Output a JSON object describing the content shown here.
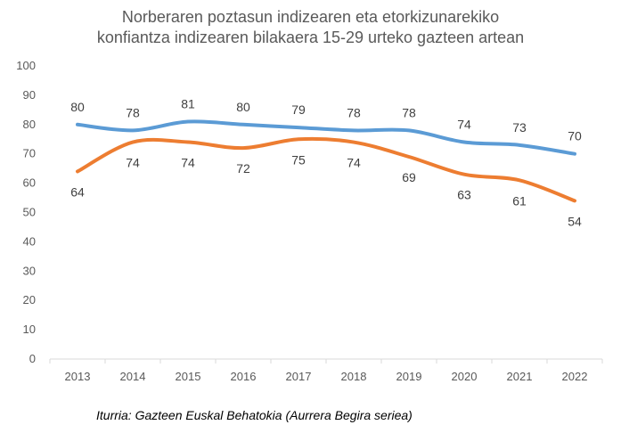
{
  "title_lines": [
    "Norberaren poztasun indizearen eta etorkizunarekiko",
    "konfiantza indizearen bilakaera 15-29 urteko gazteen artean"
  ],
  "source": "Iturria: Gazteen Euskal Behatokia (Aurrera Begira seriea)",
  "colors": {
    "series1": "#5B9BD5",
    "series2": "#ED7D31",
    "axis": "#D9D9D9",
    "text": "#595959"
  },
  "chart_data": {
    "type": "line",
    "x": [
      "2013",
      "2014",
      "2015",
      "2016",
      "2017",
      "2018",
      "2019",
      "2020",
      "2021",
      "2022"
    ],
    "series": [
      {
        "values": [
          80,
          78,
          81,
          80,
          79,
          78,
          78,
          74,
          73,
          70
        ],
        "color": "#5B9BD5",
        "labels": "above"
      },
      {
        "values": [
          64,
          74,
          74,
          72,
          75,
          74,
          69,
          63,
          61,
          54
        ],
        "color": "#ED7D31",
        "labels": "below"
      }
    ],
    "yticks": [
      "0",
      "10",
      "20",
      "30",
      "40",
      "50",
      "60",
      "70",
      "80",
      "90",
      "100"
    ],
    "ylim": [
      0,
      100
    ],
    "grid": false,
    "legend": "none",
    "smooth": true
  }
}
